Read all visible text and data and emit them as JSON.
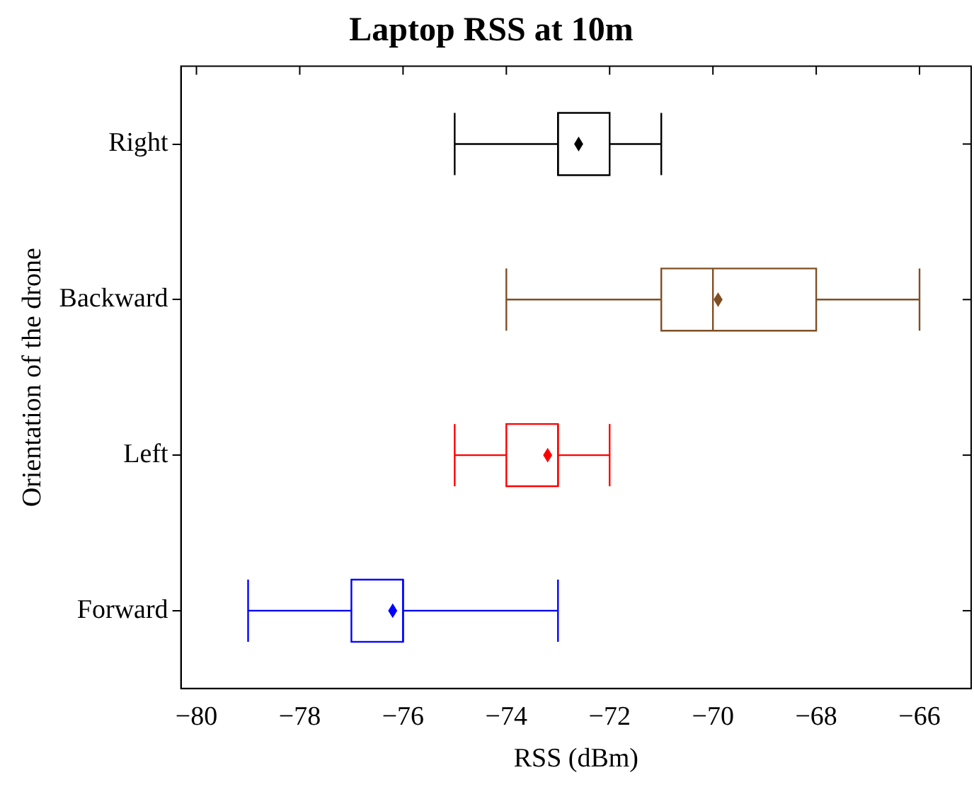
{
  "chart_data": {
    "type": "box",
    "orientation": "horizontal",
    "title": "Laptop RSS at 10m",
    "xlabel": "RSS (dBm)",
    "ylabel": "Orientation of the drone",
    "categories": [
      "Right",
      "Backward",
      "Left",
      "Forward"
    ],
    "colors": [
      "#000000",
      "#7f4f24",
      "#ff0000",
      "#0000ff"
    ],
    "boxes": [
      {
        "low": -75,
        "q1": -73,
        "median": -73,
        "q3": -72,
        "high": -71,
        "mean": -72.6
      },
      {
        "low": -74,
        "q1": -71,
        "median": -70,
        "q3": -68,
        "high": -66,
        "mean": -69.9
      },
      {
        "low": -75,
        "q1": -74,
        "median": -73,
        "q3": -73,
        "high": -72,
        "mean": -73.2
      },
      {
        "low": -79,
        "q1": -77,
        "median": -76,
        "q3": -76,
        "high": -73,
        "mean": -76.2
      }
    ],
    "marker": "diamond",
    "xlim": [
      -80.3,
      -65
    ],
    "xticks": [
      -80,
      -78,
      -76,
      -74,
      -72,
      -70,
      -68,
      -66
    ],
    "grid": false,
    "legend": false
  }
}
